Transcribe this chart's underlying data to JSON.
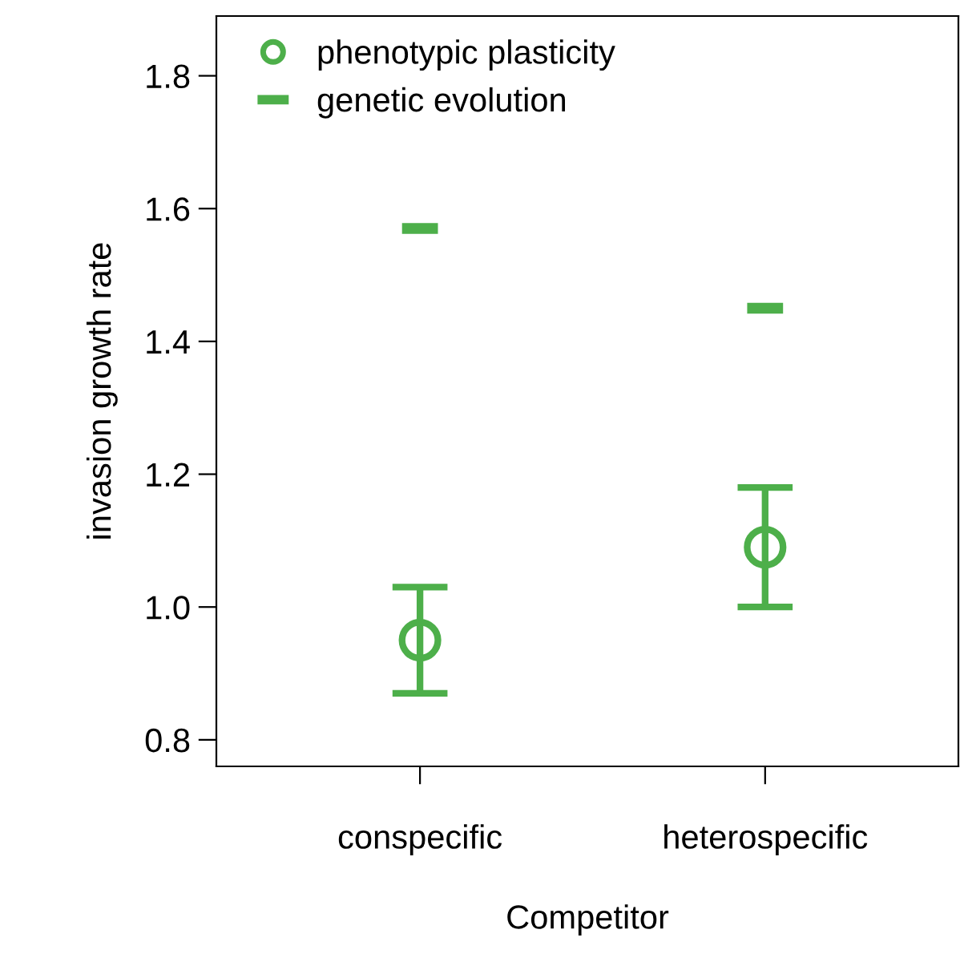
{
  "chart_data": {
    "type": "scatter",
    "xlabel": "Competitor",
    "ylabel": "invasion growth rate",
    "categories": [
      "conspecific",
      "heterospecific"
    ],
    "series": [
      {
        "name": "phenotypic plasticity",
        "color": "#4daf4a",
        "values": [
          0.95,
          1.09
        ],
        "errors": [
          [
            0.87,
            1.03
          ],
          [
            1.0,
            1.18
          ]
        ],
        "marker": "circle"
      },
      {
        "name": "genetic evolution",
        "color": "#4daf4a",
        "values": [
          1.57,
          1.45
        ]
      }
    ],
    "ylim": [
      0.76,
      1.89
    ],
    "yticks": [
      {
        "value": 0.8,
        "label": "0.8"
      },
      {
        "value": 1.0,
        "label": "1.0"
      },
      {
        "value": 1.2,
        "label": "1.2"
      },
      {
        "value": 1.4,
        "label": "1.4"
      },
      {
        "value": 1.6,
        "label": "1.6"
      },
      {
        "value": 1.8,
        "label": "1.8"
      }
    ],
    "legend": "top left",
    "grid": false
  }
}
